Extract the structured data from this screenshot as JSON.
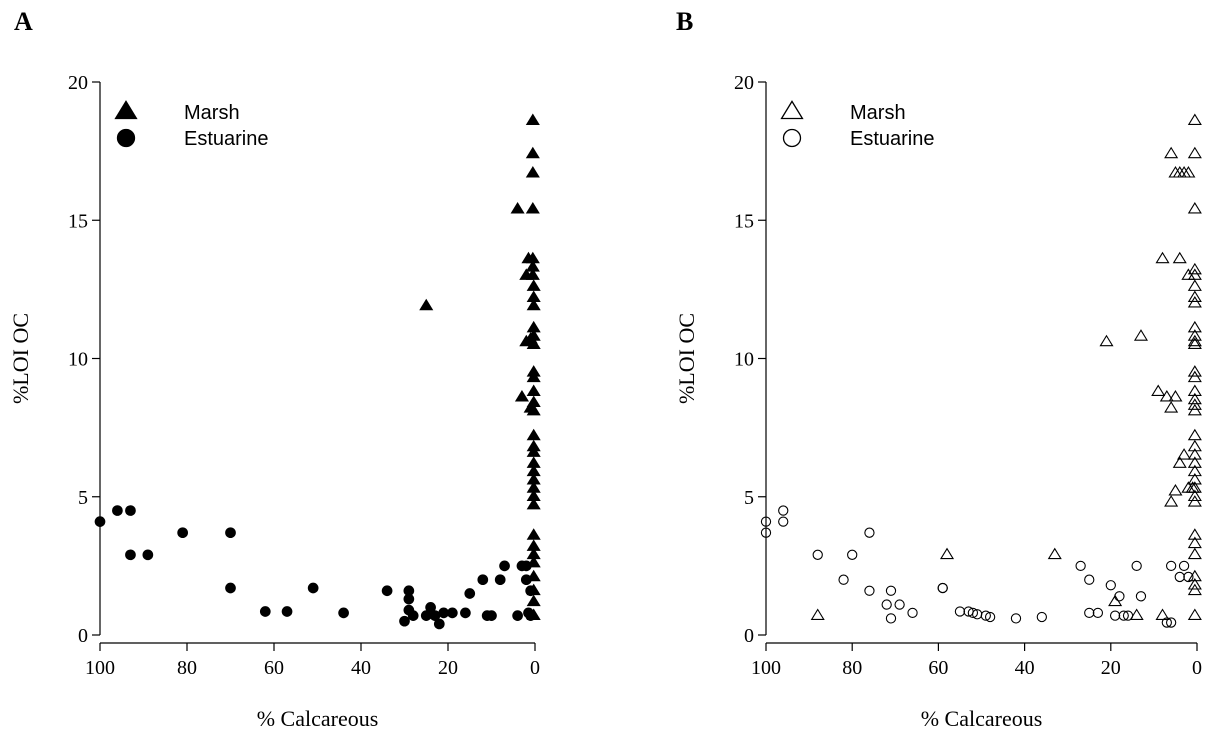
{
  "chart_data": [
    {
      "panel": "A",
      "type": "scatter",
      "title": "",
      "xlabel": "% Calcareous",
      "ylabel": "%LOI OC",
      "xlim": [
        100,
        0
      ],
      "ylim": [
        0,
        20
      ],
      "xticks": [
        100,
        80,
        60,
        40,
        20,
        0
      ],
      "yticks": [
        0,
        5,
        10,
        15,
        20
      ],
      "legend": {
        "position": "top-left",
        "filled": true
      },
      "series": [
        {
          "name": "Marsh",
          "marker": "triangle",
          "points": [
            [
              25,
              11.9
            ],
            [
              4,
              15.4
            ],
            [
              3,
              8.6
            ],
            [
              2,
              10.6
            ],
            [
              2,
              13.0
            ],
            [
              1.5,
              13.6
            ],
            [
              1,
              10.7
            ],
            [
              1,
              8.2
            ],
            [
              0.5,
              18.6
            ],
            [
              0.5,
              17.4
            ],
            [
              0.5,
              16.7
            ],
            [
              0.5,
              15.4
            ],
            [
              0.5,
              13.6
            ],
            [
              0.5,
              13.3
            ],
            [
              0.5,
              13.0
            ],
            [
              0.3,
              12.6
            ],
            [
              0.3,
              12.2
            ],
            [
              0.3,
              11.9
            ],
            [
              0.3,
              11.1
            ],
            [
              0.3,
              10.8
            ],
            [
              0.3,
              10.5
            ],
            [
              0.3,
              9.5
            ],
            [
              0.3,
              9.3
            ],
            [
              0.3,
              8.8
            ],
            [
              0.3,
              8.4
            ],
            [
              0.3,
              8.1
            ],
            [
              0.3,
              7.2
            ],
            [
              0.3,
              6.8
            ],
            [
              0.3,
              6.6
            ],
            [
              0.3,
              6.2
            ],
            [
              0.3,
              5.9
            ],
            [
              0.3,
              5.6
            ],
            [
              0.3,
              5.3
            ],
            [
              0.3,
              5.0
            ],
            [
              0.3,
              4.7
            ],
            [
              0.3,
              3.6
            ],
            [
              0.3,
              3.2
            ],
            [
              0.3,
              2.9
            ],
            [
              0.3,
              2.6
            ],
            [
              0.3,
              2.1
            ],
            [
              0.3,
              1.6
            ],
            [
              0.3,
              1.2
            ],
            [
              0.3,
              0.7
            ]
          ]
        },
        {
          "name": "Estuarine",
          "marker": "circle",
          "points": [
            [
              100,
              4.1
            ],
            [
              96,
              4.5
            ],
            [
              93,
              4.5
            ],
            [
              93,
              2.9
            ],
            [
              89,
              2.9
            ],
            [
              81,
              3.7
            ],
            [
              70,
              3.7
            ],
            [
              70,
              1.7
            ],
            [
              62,
              0.85
            ],
            [
              57,
              0.85
            ],
            [
              51,
              1.7
            ],
            [
              44,
              0.8
            ],
            [
              34,
              1.6
            ],
            [
              30,
              0.5
            ],
            [
              29,
              0.9
            ],
            [
              29,
              1.3
            ],
            [
              29,
              1.6
            ],
            [
              28,
              0.7
            ],
            [
              25,
              0.7
            ],
            [
              24,
              1.0
            ],
            [
              23,
              0.7
            ],
            [
              22,
              0.4
            ],
            [
              21,
              0.8
            ],
            [
              19,
              0.8
            ],
            [
              16,
              0.8
            ],
            [
              15,
              1.5
            ],
            [
              12,
              2.0
            ],
            [
              11,
              0.7
            ],
            [
              10,
              0.7
            ],
            [
              8,
              2.0
            ],
            [
              7,
              2.5
            ],
            [
              4,
              0.7
            ],
            [
              3,
              2.5
            ],
            [
              2,
              2.5
            ],
            [
              2,
              2.0
            ],
            [
              1.5,
              0.8
            ],
            [
              1,
              1.6
            ],
            [
              1,
              0.7
            ]
          ]
        }
      ]
    },
    {
      "panel": "B",
      "type": "scatter",
      "title": "",
      "xlabel": "% Calcareous",
      "ylabel": "%LOI OC",
      "xlim": [
        100,
        0
      ],
      "ylim": [
        0,
        20
      ],
      "xticks": [
        100,
        80,
        60,
        40,
        20,
        0
      ],
      "yticks": [
        0,
        5,
        10,
        15,
        20
      ],
      "legend": {
        "position": "top-left",
        "filled": false
      },
      "series": [
        {
          "name": "Marsh",
          "marker": "triangle",
          "points": [
            [
              88,
              0.7
            ],
            [
              58,
              2.9
            ],
            [
              33,
              2.9
            ],
            [
              21,
              10.6
            ],
            [
              19,
              1.2
            ],
            [
              14,
              0.7
            ],
            [
              13,
              10.8
            ],
            [
              9,
              8.8
            ],
            [
              8,
              0.7
            ],
            [
              8,
              13.6
            ],
            [
              7,
              8.6
            ],
            [
              6,
              17.4
            ],
            [
              6,
              8.2
            ],
            [
              6,
              4.8
            ],
            [
              5,
              16.7
            ],
            [
              5,
              8.6
            ],
            [
              5,
              5.2
            ],
            [
              4,
              16.7
            ],
            [
              4,
              13.6
            ],
            [
              4,
              6.2
            ],
            [
              3,
              16.7
            ],
            [
              3,
              6.5
            ],
            [
              2,
              16.7
            ],
            [
              2,
              13.0
            ],
            [
              2,
              5.3
            ],
            [
              1,
              5.3
            ],
            [
              0.5,
              18.6
            ],
            [
              0.5,
              17.4
            ],
            [
              0.5,
              15.4
            ],
            [
              0.5,
              13.2
            ],
            [
              0.5,
              13.0
            ],
            [
              0.5,
              12.6
            ],
            [
              0.5,
              12.2
            ],
            [
              0.5,
              12.0
            ],
            [
              0.5,
              11.1
            ],
            [
              0.5,
              10.8
            ],
            [
              0.5,
              10.6
            ],
            [
              0.5,
              10.5
            ],
            [
              0.5,
              9.5
            ],
            [
              0.5,
              9.3
            ],
            [
              0.5,
              8.8
            ],
            [
              0.5,
              8.5
            ],
            [
              0.5,
              8.3
            ],
            [
              0.5,
              8.1
            ],
            [
              0.5,
              7.2
            ],
            [
              0.5,
              6.8
            ],
            [
              0.5,
              6.5
            ],
            [
              0.5,
              6.2
            ],
            [
              0.5,
              5.9
            ],
            [
              0.5,
              5.6
            ],
            [
              0.5,
              5.3
            ],
            [
              0.5,
              5.0
            ],
            [
              0.5,
              4.8
            ],
            [
              0.5,
              3.6
            ],
            [
              0.5,
              3.3
            ],
            [
              0.5,
              2.9
            ],
            [
              0.5,
              2.1
            ],
            [
              0.5,
              1.8
            ],
            [
              0.5,
              1.6
            ],
            [
              0.5,
              0.7
            ]
          ]
        },
        {
          "name": "Estuarine",
          "marker": "circle",
          "points": [
            [
              100,
              4.1
            ],
            [
              100,
              3.7
            ],
            [
              96,
              4.5
            ],
            [
              96,
              4.1
            ],
            [
              88,
              2.9
            ],
            [
              82,
              2.0
            ],
            [
              80,
              2.9
            ],
            [
              76,
              3.7
            ],
            [
              76,
              1.6
            ],
            [
              72,
              1.1
            ],
            [
              71,
              1.6
            ],
            [
              71,
              0.6
            ],
            [
              69,
              1.1
            ],
            [
              66,
              0.8
            ],
            [
              59,
              1.7
            ],
            [
              59,
              1.7
            ],
            [
              55,
              0.85
            ],
            [
              53,
              0.85
            ],
            [
              52,
              0.8
            ],
            [
              51,
              0.75
            ],
            [
              49,
              0.7
            ],
            [
              48,
              0.65
            ],
            [
              42,
              0.6
            ],
            [
              36,
              0.65
            ],
            [
              27,
              2.5
            ],
            [
              25,
              2.0
            ],
            [
              25,
              0.8
            ],
            [
              23,
              0.8
            ],
            [
              20,
              1.8
            ],
            [
              19,
              0.7
            ],
            [
              18,
              1.4
            ],
            [
              17,
              0.7
            ],
            [
              16,
              0.7
            ],
            [
              14,
              2.5
            ],
            [
              13,
              1.4
            ],
            [
              7,
              0.45
            ],
            [
              6,
              2.5
            ],
            [
              6,
              0.45
            ],
            [
              4,
              2.1
            ],
            [
              3,
              2.5
            ],
            [
              2,
              2.1
            ]
          ]
        }
      ]
    }
  ]
}
